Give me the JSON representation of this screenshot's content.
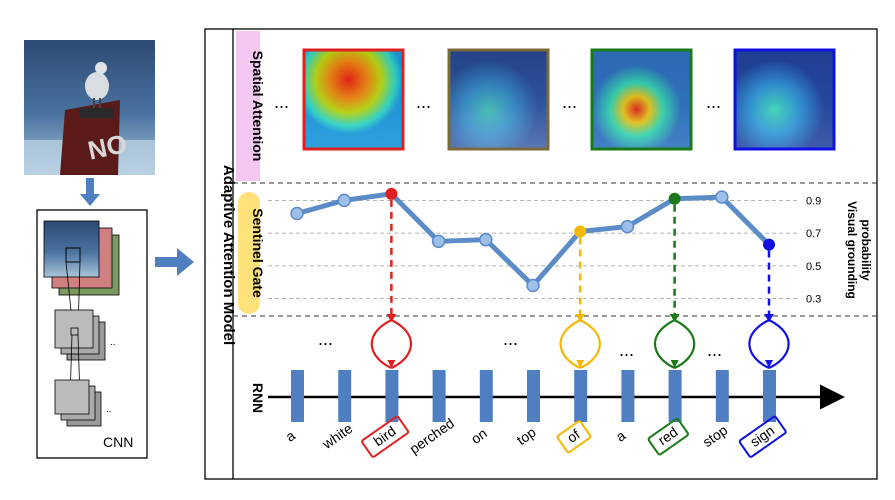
{
  "cnn": {
    "label": "CNN"
  },
  "model": {
    "title": "Adaptive Attention Model",
    "sections": {
      "spatial": "Spatial Attention",
      "sentinel": "Sentinel Gate",
      "rnn": "RNN"
    }
  },
  "ellipsis": "...",
  "probability_axis": {
    "label_line1": "Visual  grounding",
    "label_line2": "probability",
    "ticks": [
      "0.9",
      "0.7",
      "0.5",
      "0.3"
    ]
  },
  "words": [
    "a",
    "white",
    "bird",
    "perched",
    "on",
    "top",
    "of",
    "a",
    "red",
    "stop",
    "sign"
  ],
  "highlighted_words": {
    "bird": "#e02020",
    "of": "#f5b800",
    "red": "#1a7a1a",
    "sign": "#1010e0"
  },
  "chart_data": {
    "type": "line",
    "x": [
      "a",
      "white",
      "bird",
      "perched",
      "on",
      "top",
      "of",
      "a",
      "red",
      "stop",
      "sign"
    ],
    "series": [
      {
        "values": [
          0.82,
          0.9,
          0.94,
          0.65,
          0.66,
          0.38,
          0.71,
          0.74,
          0.91,
          0.92,
          0.63
        ]
      }
    ],
    "ylim": [
      0.2,
      1.0
    ],
    "ticks": [
      0.9,
      0.7,
      0.5,
      0.3
    ],
    "highlight": {
      "bird": "#e02020",
      "of": "#f5b800",
      "red": "#1a7a1a",
      "sign": "#1010e0"
    }
  },
  "colors": {
    "line": "#5b8cc8",
    "bar": "#4f7fc0",
    "spatial_bg": "#f4c8f0",
    "sentinel_bg": "#ffe27a",
    "frame_olive": "#7a6a3a"
  }
}
